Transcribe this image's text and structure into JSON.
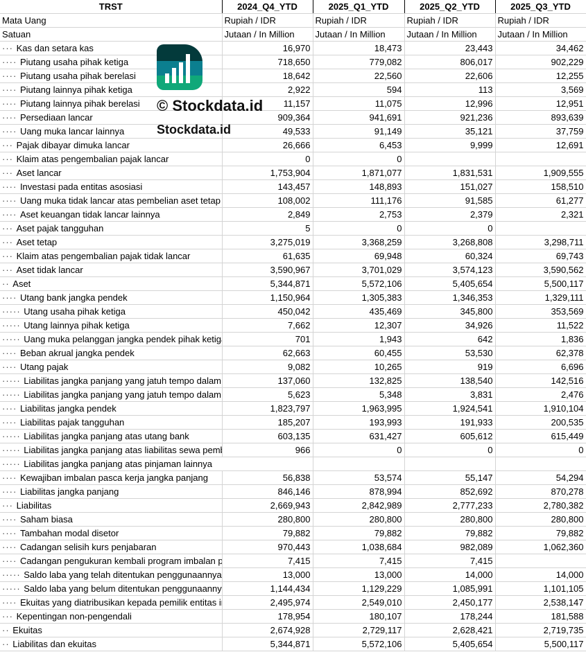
{
  "header": {
    "title": "TRST",
    "periods": [
      "2024_Q4_YTD",
      "2025_Q1_YTD",
      "2025_Q2_YTD",
      "2025_Q3_YTD"
    ]
  },
  "meta_rows": [
    {
      "label": "Mata Uang",
      "values": [
        "Rupiah / IDR",
        "Rupiah / IDR",
        "Rupiah / IDR",
        "Rupiah / IDR"
      ]
    },
    {
      "label": "Satuan",
      "values": [
        "Jutaan / In Million",
        "Jutaan / In Million",
        "Jutaan / In Million",
        "Jutaan / In Million"
      ]
    }
  ],
  "rows": [
    {
      "indent": 3,
      "label": "Kas dan setara kas",
      "values": [
        "16,970",
        "18,473",
        "23,443",
        "34,462"
      ]
    },
    {
      "indent": 4,
      "label": "Piutang usaha pihak ketiga",
      "values": [
        "718,650",
        "779,082",
        "806,017",
        "902,229"
      ]
    },
    {
      "indent": 4,
      "label": "Piutang usaha pihak berelasi",
      "values": [
        "18,642",
        "22,560",
        "22,606",
        "12,255"
      ]
    },
    {
      "indent": 4,
      "label": "Piutang lainnya pihak ketiga",
      "values": [
        "2,922",
        "594",
        "113",
        "3,569"
      ]
    },
    {
      "indent": 4,
      "label": "Piutang lainnya pihak berelasi",
      "values": [
        "11,157",
        "11,075",
        "12,996",
        "12,951"
      ]
    },
    {
      "indent": 4,
      "label": "Persediaan lancar",
      "values": [
        "909,364",
        "941,691",
        "921,236",
        "893,639"
      ]
    },
    {
      "indent": 4,
      "label": "Uang muka lancar lainnya",
      "values": [
        "49,533",
        "91,149",
        "35,121",
        "37,759"
      ]
    },
    {
      "indent": 3,
      "label": "Pajak dibayar dimuka lancar",
      "values": [
        "26,666",
        "6,453",
        "9,999",
        "12,691"
      ]
    },
    {
      "indent": 3,
      "label": "Klaim atas pengembalian pajak lancar",
      "values": [
        "0",
        "0",
        "",
        ""
      ]
    },
    {
      "indent": 3,
      "label": "Aset lancar",
      "values": [
        "1,753,904",
        "1,871,077",
        "1,831,531",
        "1,909,555"
      ]
    },
    {
      "indent": 4,
      "label": "Investasi pada entitas asosiasi",
      "values": [
        "143,457",
        "148,893",
        "151,027",
        "158,510"
      ]
    },
    {
      "indent": 4,
      "label": "Uang muka tidak lancar atas pembelian aset tetap",
      "values": [
        "108,002",
        "111,176",
        "91,585",
        "61,277"
      ]
    },
    {
      "indent": 4,
      "label": "Aset keuangan tidak lancar lainnya",
      "values": [
        "2,849",
        "2,753",
        "2,379",
        "2,321"
      ]
    },
    {
      "indent": 3,
      "label": "Aset pajak tangguhan",
      "values": [
        "5",
        "0",
        "0",
        ""
      ]
    },
    {
      "indent": 3,
      "label": "Aset tetap",
      "values": [
        "3,275,019",
        "3,368,259",
        "3,268,808",
        "3,298,711"
      ]
    },
    {
      "indent": 3,
      "label": "Klaim atas pengembalian pajak tidak lancar",
      "values": [
        "61,635",
        "69,948",
        "60,324",
        "69,743"
      ]
    },
    {
      "indent": 3,
      "label": "Aset tidak lancar",
      "values": [
        "3,590,967",
        "3,701,029",
        "3,574,123",
        "3,590,562"
      ]
    },
    {
      "indent": 2,
      "label": "Aset",
      "values": [
        "5,344,871",
        "5,572,106",
        "5,405,654",
        "5,500,117"
      ]
    },
    {
      "indent": 4,
      "label": "Utang bank jangka pendek",
      "values": [
        "1,150,964",
        "1,305,383",
        "1,346,353",
        "1,329,111"
      ]
    },
    {
      "indent": 5,
      "label": "Utang usaha pihak ketiga",
      "values": [
        "450,042",
        "435,469",
        "345,800",
        "353,569"
      ]
    },
    {
      "indent": 5,
      "label": "Utang lainnya pihak ketiga",
      "values": [
        "7,662",
        "12,307",
        "34,926",
        "11,522"
      ]
    },
    {
      "indent": 5,
      "label": "Uang muka pelanggan jangka pendek pihak ketiga",
      "values": [
        "701",
        "1,943",
        "642",
        "1,836"
      ]
    },
    {
      "indent": 4,
      "label": "Beban akrual jangka pendek",
      "values": [
        "62,663",
        "60,455",
        "53,530",
        "62,378"
      ]
    },
    {
      "indent": 4,
      "label": "Utang pajak",
      "values": [
        "9,082",
        "10,265",
        "919",
        "6,696"
      ]
    },
    {
      "indent": 5,
      "label": "Liabilitas jangka panjang yang jatuh tempo dalam satu tahun",
      "values": [
        "137,060",
        "132,825",
        "138,540",
        "142,516"
      ]
    },
    {
      "indent": 5,
      "label": "Liabilitas jangka panjang yang jatuh tempo dalam satu tahun",
      "values": [
        "5,623",
        "5,348",
        "3,831",
        "2,476"
      ]
    },
    {
      "indent": 4,
      "label": "Liabilitas jangka pendek",
      "values": [
        "1,823,797",
        "1,963,995",
        "1,924,541",
        "1,910,104"
      ]
    },
    {
      "indent": 4,
      "label": "Liabilitas pajak tangguhan",
      "values": [
        "185,207",
        "193,993",
        "191,933",
        "200,535"
      ]
    },
    {
      "indent": 5,
      "label": "Liabilitas jangka panjang atas utang bank",
      "values": [
        "603,135",
        "631,427",
        "605,612",
        "615,449"
      ]
    },
    {
      "indent": 5,
      "label": "Liabilitas jangka panjang atas liabilitas sewa pembiayaan",
      "values": [
        "966",
        "0",
        "0",
        "0"
      ]
    },
    {
      "indent": 5,
      "label": "Liabilitas jangka panjang atas pinjaman lainnya",
      "values": [
        "",
        "",
        "",
        ""
      ]
    },
    {
      "indent": 4,
      "label": "Kewajiban imbalan pasca kerja jangka panjang",
      "values": [
        "56,838",
        "53,574",
        "55,147",
        "54,294"
      ]
    },
    {
      "indent": 4,
      "label": "Liabilitas jangka panjang",
      "values": [
        "846,146",
        "878,994",
        "852,692",
        "870,278"
      ]
    },
    {
      "indent": 3,
      "label": "Liabilitas",
      "values": [
        "2,669,943",
        "2,842,989",
        "2,777,233",
        "2,780,382"
      ]
    },
    {
      "indent": 4,
      "label": "Saham biasa",
      "values": [
        "280,800",
        "280,800",
        "280,800",
        "280,800"
      ]
    },
    {
      "indent": 4,
      "label": "Tambahan modal disetor",
      "values": [
        "79,882",
        "79,882",
        "79,882",
        "79,882"
      ]
    },
    {
      "indent": 4,
      "label": "Cadangan selisih kurs penjabaran",
      "values": [
        "970,443",
        "1,038,684",
        "982,089",
        "1,062,360"
      ]
    },
    {
      "indent": 4,
      "label": "Cadangan pengukuran kembali program imbalan pasti",
      "values": [
        "7,415",
        "7,415",
        "7,415",
        ""
      ]
    },
    {
      "indent": 5,
      "label": "Saldo laba yang telah ditentukan penggunaannya",
      "values": [
        "13,000",
        "13,000",
        "14,000",
        "14,000"
      ]
    },
    {
      "indent": 5,
      "label": "Saldo laba yang belum ditentukan penggunaannya",
      "values": [
        "1,144,434",
        "1,129,229",
        "1,085,991",
        "1,101,105"
      ]
    },
    {
      "indent": 4,
      "label": "Ekuitas yang diatribusikan kepada pemilik entitas induk",
      "values": [
        "2,495,974",
        "2,549,010",
        "2,450,177",
        "2,538,147"
      ]
    },
    {
      "indent": 3,
      "label": "Kepentingan non-pengendali",
      "values": [
        "178,954",
        "180,107",
        "178,244",
        "181,588"
      ]
    },
    {
      "indent": 2,
      "label": "Ekuitas",
      "values": [
        "2,674,928",
        "2,729,117",
        "2,628,421",
        "2,719,735"
      ]
    },
    {
      "indent": 2,
      "label": "Liabilitas dan ekuitas",
      "values": [
        "5,344,871",
        "5,572,106",
        "5,405,654",
        "5,500,117"
      ]
    }
  ],
  "watermark": {
    "text": "© Stockdata.id",
    "logo_text": "Stockdata.id",
    "colors": [
      "#033a3b",
      "#0b7f8f",
      "#10a879"
    ]
  }
}
